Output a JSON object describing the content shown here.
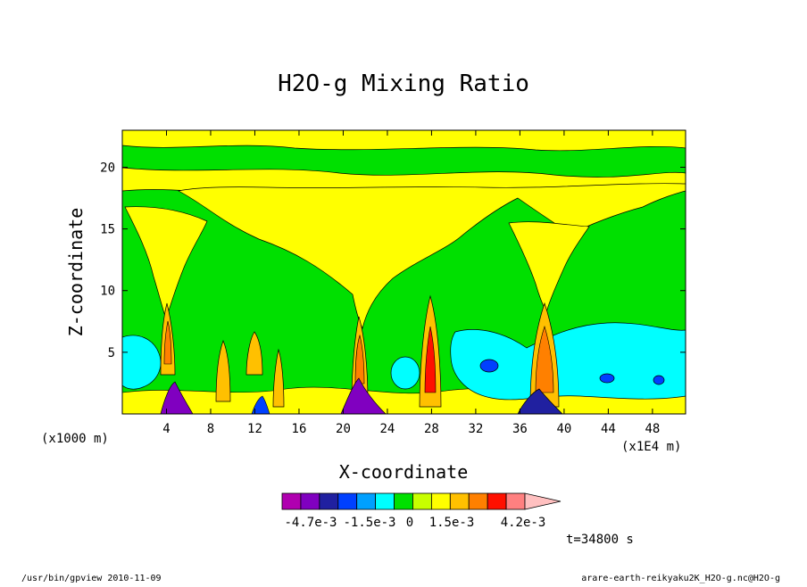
{
  "chart_data": {
    "type": "heatmap",
    "title": "H2O-g Mixing Ratio",
    "xlabel": "X-coordinate",
    "ylabel": "Z-coordinate",
    "x_unit": "(x1E4 m)",
    "y_unit": "(x1000 m)",
    "xlim": [
      0,
      51
    ],
    "ylim": [
      0,
      23
    ],
    "x_ticks": [
      4,
      8,
      12,
      16,
      20,
      24,
      28,
      32,
      36,
      40,
      44,
      48
    ],
    "y_ticks": [
      5,
      10,
      15,
      20
    ],
    "colorbar": {
      "colors": [
        "#b000b0",
        "#8000c0",
        "#2020a0",
        "#0040ff",
        "#00a0ff",
        "#00ffff",
        "#00e000",
        "#c8ff00",
        "#ffff00",
        "#ffc000",
        "#ff8000",
        "#ff1000",
        "#ff8080",
        "#ffc0c0"
      ],
      "labels": [
        "-4.7e-3",
        "-1.5e-3",
        "0",
        "1.5e-3",
        "4.2e-3"
      ]
    },
    "dominant_fields": [
      {
        "name": "background",
        "color": "#00e000"
      },
      {
        "name": "upper band",
        "color": "#ffff00",
        "z_range": [
          19,
          22
        ]
      },
      {
        "name": "plumes",
        "x_centers": [
          4.2,
          9,
          14,
          21.5,
          28,
          38
        ],
        "color": "#ffc000"
      },
      {
        "name": "low cyan pools",
        "x_ranges": [
          [
            0,
            3
          ],
          [
            31,
            36
          ],
          [
            40,
            51
          ]
        ],
        "color": "#00ffff"
      }
    ]
  },
  "time_label": "t=34800 s",
  "footer": {
    "left": "/usr/bin/gpview   2010-11-09",
    "right": "arare-earth-reikyaku2K_H2O-g.nc@H2O-g"
  }
}
